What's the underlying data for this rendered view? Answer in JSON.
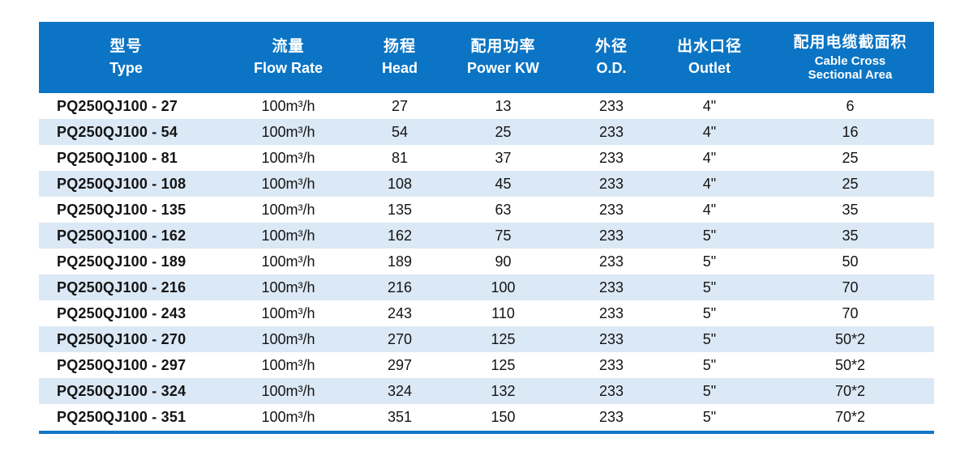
{
  "colors": {
    "header_bg": "#0B74C4",
    "stripe": "#DBE8F5",
    "bottom_line": "#1377C7",
    "header_text": "#FFFFFF",
    "body_text": "#141414"
  },
  "table": {
    "columns": [
      {
        "zh": "型号",
        "en": "Type"
      },
      {
        "zh": "流量",
        "en": "Flow Rate"
      },
      {
        "zh": "扬程",
        "en": "Head"
      },
      {
        "zh": "配用功率",
        "en": "Power KW"
      },
      {
        "zh": "外径",
        "en": "O.D."
      },
      {
        "zh": "出水口径",
        "en": "Outlet"
      },
      {
        "zh": "配用电缆截面积",
        "en": "Cable Cross",
        "en2": "Sectional Area"
      }
    ],
    "rows": [
      [
        "PQ250QJ100 - 27",
        "100m³/h",
        "27",
        "13",
        "233",
        "4\"",
        "6"
      ],
      [
        "PQ250QJ100 - 54",
        "100m³/h",
        "54",
        "25",
        "233",
        "4\"",
        "16"
      ],
      [
        "PQ250QJ100 - 81",
        "100m³/h",
        "81",
        "37",
        "233",
        "4\"",
        "25"
      ],
      [
        "PQ250QJ100 - 108",
        "100m³/h",
        "108",
        "45",
        "233",
        "4\"",
        "25"
      ],
      [
        "PQ250QJ100 - 135",
        "100m³/h",
        "135",
        "63",
        "233",
        "4\"",
        "35"
      ],
      [
        "PQ250QJ100 - 162",
        "100m³/h",
        "162",
        "75",
        "233",
        "5\"",
        "35"
      ],
      [
        "PQ250QJ100 - 189",
        "100m³/h",
        "189",
        "90",
        "233",
        "5\"",
        "50"
      ],
      [
        "PQ250QJ100 - 216",
        "100m³/h",
        "216",
        "100",
        "233",
        "5\"",
        "70"
      ],
      [
        "PQ250QJ100 - 243",
        "100m³/h",
        "243",
        "110",
        "233",
        "5\"",
        "70"
      ],
      [
        "PQ250QJ100 - 270",
        "100m³/h",
        "270",
        "125",
        "233",
        "5\"",
        "50*2"
      ],
      [
        "PQ250QJ100 - 297",
        "100m³/h",
        "297",
        "125",
        "233",
        "5\"",
        "50*2"
      ],
      [
        "PQ250QJ100 - 324",
        "100m³/h",
        "324",
        "132",
        "233",
        "5\"",
        "70*2"
      ],
      [
        "PQ250QJ100 - 351",
        "100m³/h",
        "351",
        "150",
        "233",
        "5\"",
        "70*2"
      ]
    ]
  }
}
